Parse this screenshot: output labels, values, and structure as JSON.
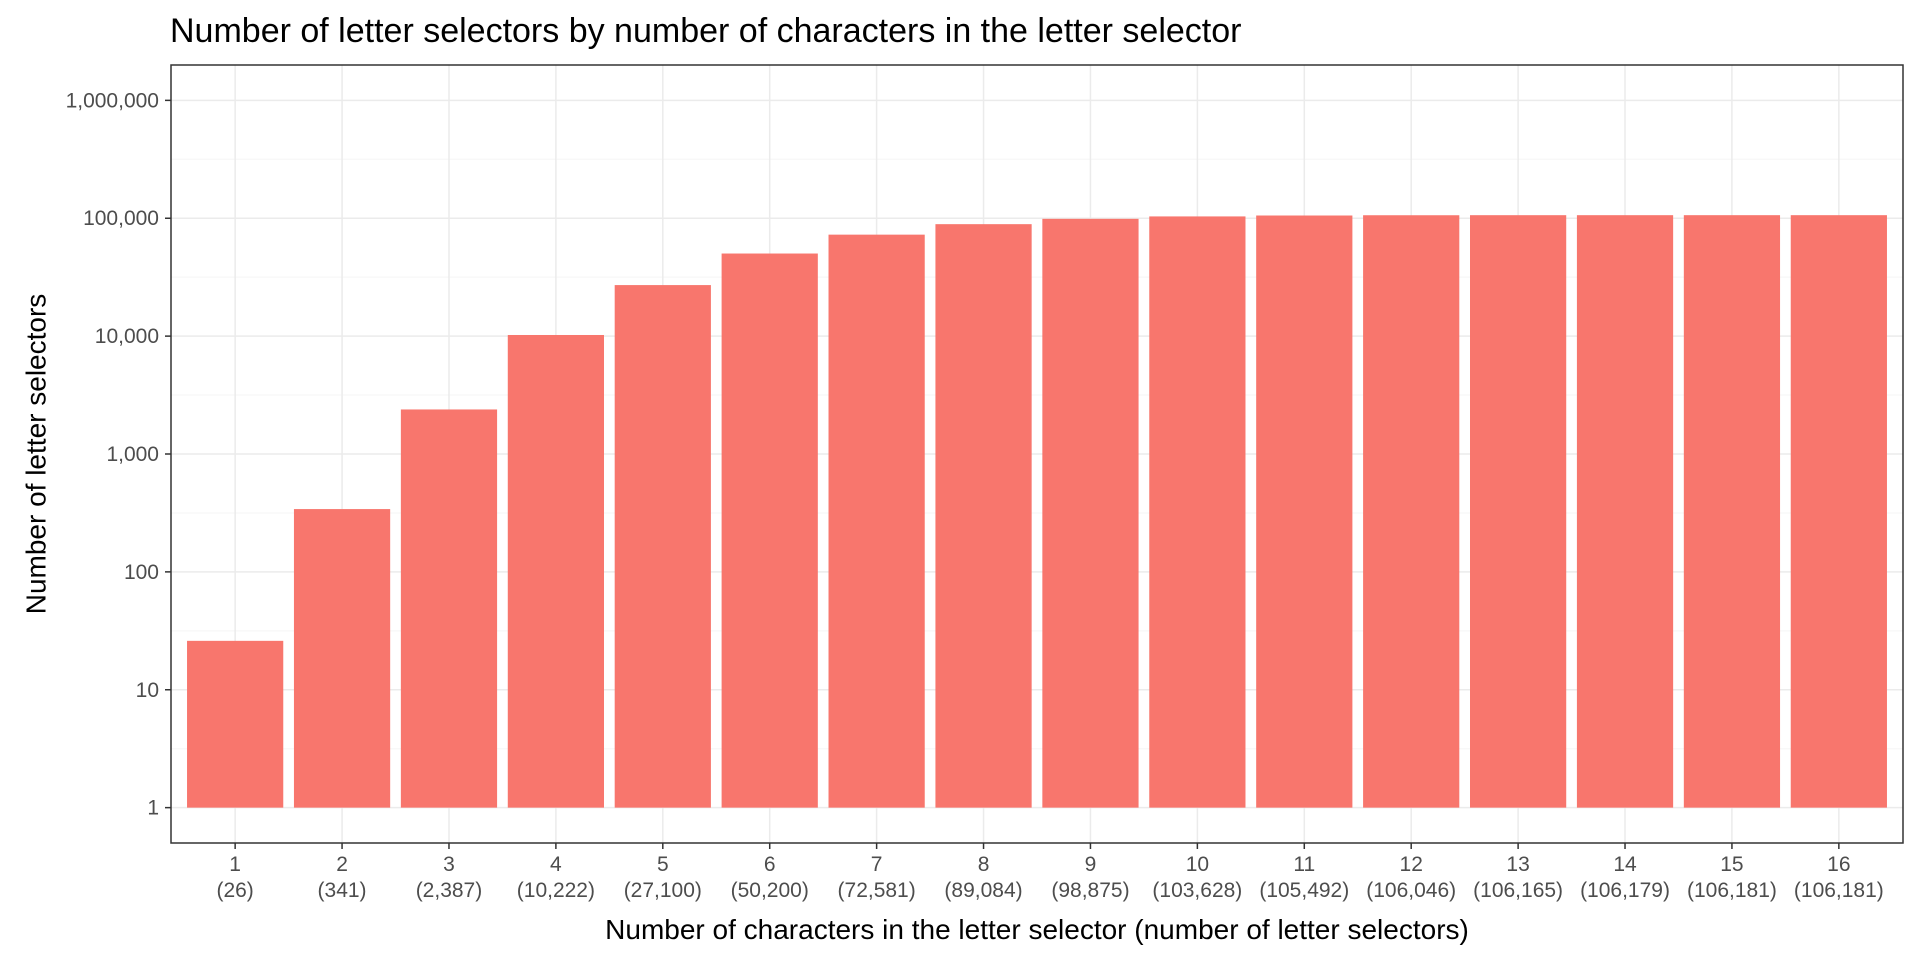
{
  "chart_data": {
    "type": "bar",
    "title": "Number of letter selectors by number of characters in the letter selector",
    "xlabel": "Number of characters in the letter selector (number of letter selectors)",
    "ylabel": "Number of letter selectors",
    "y_scale": "log10",
    "ylim": [
      1,
      1000000
    ],
    "y_ticks": [
      1,
      10,
      100,
      1000,
      10000,
      100000,
      1000000
    ],
    "y_tick_labels": [
      "1",
      "10",
      "100",
      "1,000",
      "10,000",
      "100,000",
      "1,000,000"
    ],
    "categories": [
      "1",
      "2",
      "3",
      "4",
      "5",
      "6",
      "7",
      "8",
      "9",
      "10",
      "11",
      "12",
      "13",
      "14",
      "15",
      "16"
    ],
    "category_sublabels": [
      "(26)",
      "(341)",
      "(2,387)",
      "(10,222)",
      "(27,100)",
      "(50,200)",
      "(72,581)",
      "(89,084)",
      "(98,875)",
      "(103,628)",
      "(105,492)",
      "(106,046)",
      "(106,165)",
      "(106,179)",
      "(106,181)",
      "(106,181)"
    ],
    "values": [
      26,
      341,
      2387,
      10222,
      27100,
      50200,
      72581,
      89084,
      98875,
      103628,
      105492,
      106046,
      106165,
      106179,
      106181,
      106181
    ],
    "grid": true,
    "legend": "none",
    "colors": {
      "bar": "#F8766D",
      "grid_major": "#ebebeb",
      "grid_minor": "#f5f5f5",
      "panel_border": "#333333",
      "tick_label": "#4d4d4d"
    }
  }
}
